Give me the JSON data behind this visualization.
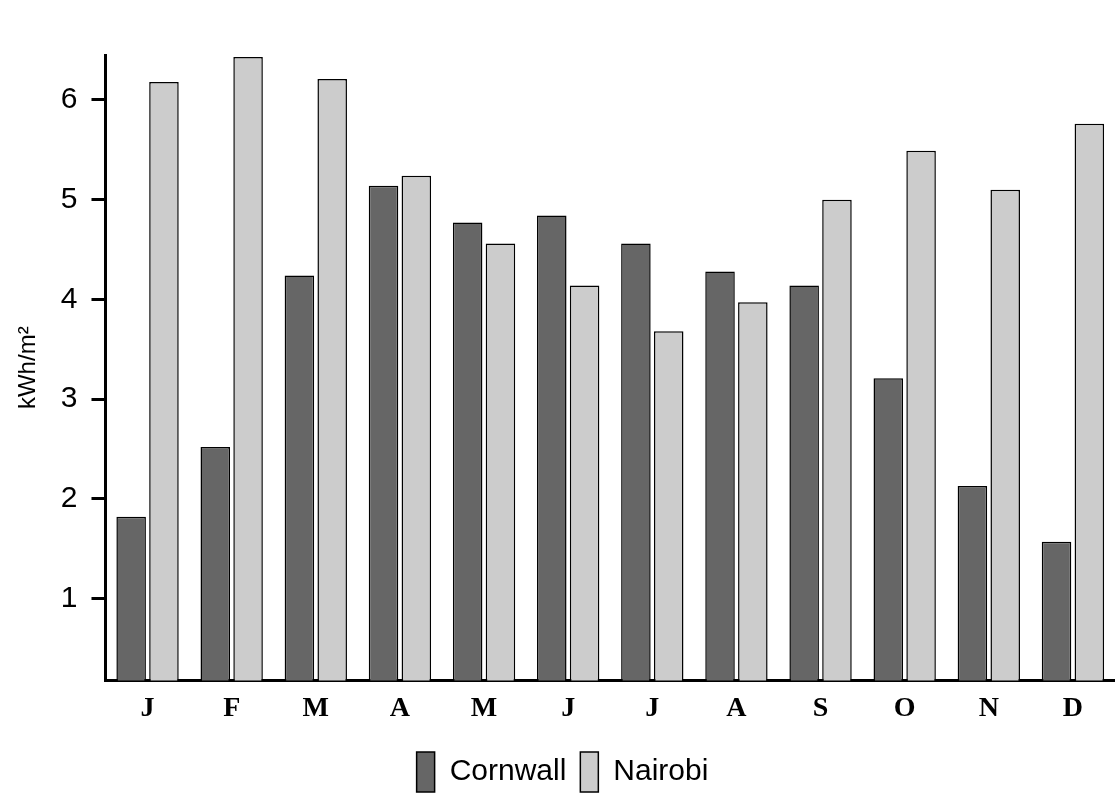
{
  "chart_data": {
    "type": "bar",
    "ylabel": "kWh/m²",
    "categories": [
      "J",
      "F",
      "M",
      "A",
      "M",
      "J",
      "J",
      "A",
      "S",
      "O",
      "N",
      "D"
    ],
    "series": [
      {
        "name": "Cornwall",
        "color": "#666666",
        "values": [
          1.82,
          2.52,
          4.24,
          5.14,
          4.77,
          4.84,
          4.56,
          4.28,
          4.14,
          3.21,
          2.13,
          1.57
        ]
      },
      {
        "name": "Nairobi",
        "color": "#cccccc",
        "values": [
          6.18,
          6.43,
          6.21,
          5.24,
          4.56,
          4.14,
          3.68,
          3.97,
          5.0,
          5.49,
          5.1,
          5.76
        ]
      }
    ],
    "ylim": [
      0.18,
      6.45
    ],
    "yticks": [
      1,
      2,
      3,
      4,
      5,
      6
    ],
    "grid": false,
    "legend": "bottom"
  }
}
